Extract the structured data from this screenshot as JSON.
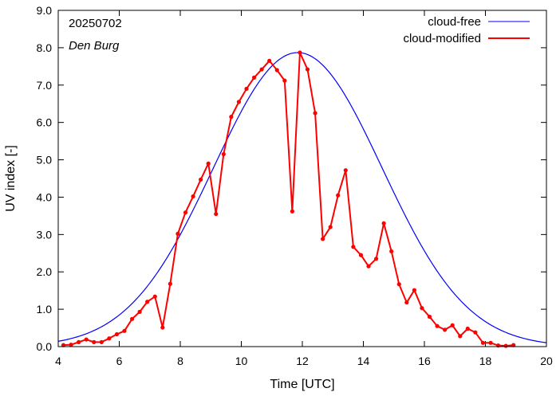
{
  "chart_data": {
    "type": "line",
    "annotations": {
      "date": "20250702",
      "station": "Den Burg"
    },
    "xlabel": "Time  [UTC]",
    "ylabel": "UV index  [-]",
    "xlim": [
      4,
      20
    ],
    "ylim": [
      0,
      9
    ],
    "xticks": [
      4,
      6,
      8,
      10,
      12,
      14,
      16,
      18,
      20
    ],
    "xtick_labels": [
      "4",
      "6",
      "8",
      "10",
      "12",
      "14",
      "16",
      "18",
      "20"
    ],
    "yticks": [
      0,
      1,
      2,
      3,
      4,
      5,
      6,
      7,
      8,
      9
    ],
    "ytick_labels": [
      "0.0",
      "1.0",
      "2.0",
      "3.0",
      "4.0",
      "5.0",
      "6.0",
      "7.0",
      "8.0",
      "9.0"
    ],
    "grid": false,
    "legend_position": "top-right",
    "series": [
      {
        "name": "cloud-free",
        "color": "#0000ff",
        "style": "line",
        "peak_x": 11.85,
        "peak_y": 7.87,
        "sigma": 2.77
      },
      {
        "name": "cloud-modified",
        "color": "#ff0000",
        "style": "line-points",
        "x": [
          4.17,
          4.42,
          4.67,
          4.92,
          5.17,
          5.42,
          5.67,
          5.92,
          6.17,
          6.42,
          6.67,
          6.92,
          7.17,
          7.42,
          7.67,
          7.92,
          8.17,
          8.42,
          8.67,
          8.92,
          9.17,
          9.42,
          9.67,
          9.92,
          10.17,
          10.42,
          10.67,
          10.92,
          11.17,
          11.42,
          11.67,
          11.92,
          12.17,
          12.42,
          12.67,
          12.92,
          13.17,
          13.42,
          13.67,
          13.92,
          14.17,
          14.42,
          14.67,
          14.92,
          15.17,
          15.42,
          15.67,
          15.92,
          16.17,
          16.42,
          16.67,
          16.92,
          17.17,
          17.42,
          17.67,
          17.92,
          18.17,
          18.42,
          18.67,
          18.92
        ],
        "y": [
          0.04,
          0.05,
          0.12,
          0.19,
          0.12,
          0.12,
          0.22,
          0.33,
          0.42,
          0.74,
          0.93,
          1.2,
          1.34,
          0.51,
          1.68,
          3.02,
          3.59,
          4.02,
          4.47,
          4.9,
          3.55,
          5.15,
          6.15,
          6.55,
          6.9,
          7.2,
          7.42,
          7.65,
          7.4,
          7.12,
          3.62,
          7.87,
          7.42,
          6.25,
          2.88,
          3.2,
          4.05,
          4.72,
          2.67,
          2.45,
          2.15,
          2.35,
          3.3,
          2.55,
          1.67,
          1.18,
          1.51,
          1.03,
          0.8,
          0.55,
          0.45,
          0.57,
          0.28,
          0.48,
          0.38,
          0.1,
          0.1,
          0.03,
          0.02,
          0.04
        ]
      }
    ]
  }
}
